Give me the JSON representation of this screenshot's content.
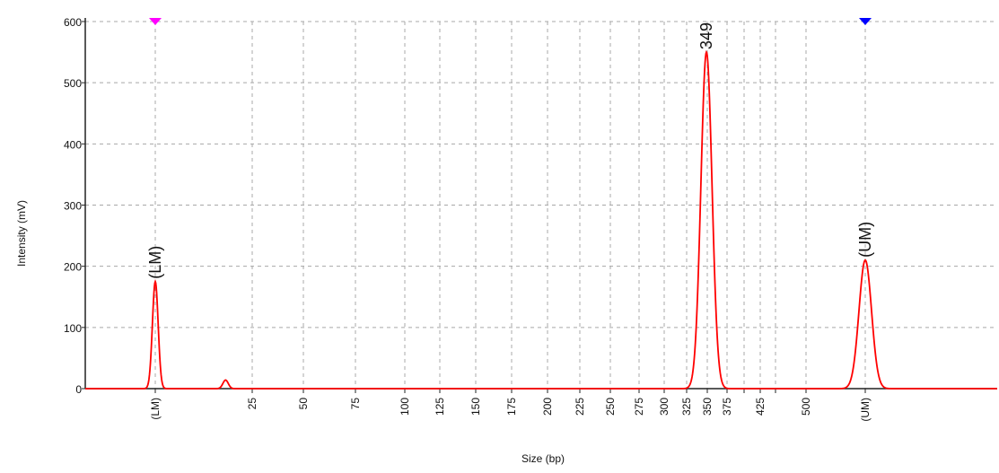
{
  "chart_data": {
    "type": "line",
    "title": "",
    "xlabel": "Size (bp)",
    "ylabel": "Intensity (mV)",
    "ylim": [
      0,
      600
    ],
    "yticks": [
      0,
      100,
      200,
      300,
      400,
      500,
      600
    ],
    "grid": true,
    "x_axis_kind": "categorical size axis (bp)",
    "xticks": [
      "(LM)",
      "25",
      "50",
      "75",
      "100",
      "125",
      "150",
      "175",
      "200",
      "225",
      "250",
      "275",
      "300",
      "325",
      "350",
      "375",
      "400",
      "425",
      "450",
      "500",
      "(UM)"
    ],
    "xticks_labeled": [
      "(LM)",
      "25",
      "50",
      "75",
      "100",
      "125",
      "150",
      "175",
      "200",
      "225",
      "250",
      "275",
      "300",
      "325",
      "350",
      "375",
      "425",
      "500",
      "(UM)"
    ],
    "series": [
      {
        "color": "#ff0000",
        "peaks": [
          {
            "x": "(LM)",
            "height": 175,
            "label": "(LM)"
          },
          {
            "x": "20",
            "height": 14,
            "label": ""
          },
          {
            "x": "349",
            "height": 550,
            "label": "349"
          },
          {
            "x": "(UM)",
            "height": 210,
            "label": "(UM)"
          }
        ]
      }
    ],
    "markers": [
      {
        "x": "(LM)",
        "color": "#ff00ff",
        "shape": "triangle-down"
      },
      {
        "x": "(UM)",
        "color": "#0000ff",
        "shape": "triangle-down"
      }
    ]
  }
}
